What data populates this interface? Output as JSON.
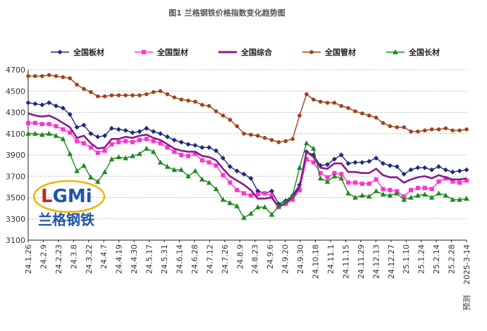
{
  "chart_data": {
    "type": "line",
    "title": "图1 兰格钢铁价格指数变化趋势图",
    "xlabel": "",
    "ylabel": "",
    "ylim": [
      3100,
      4700
    ],
    "yticks": [
      3100,
      3300,
      3500,
      3700,
      3900,
      4100,
      4300,
      4500,
      4700
    ],
    "grid": true,
    "legend_position": "top",
    "x_tick_labels": [
      "24.1.26",
      "24.2.9",
      "24.2.23",
      "24.3.8",
      "24.3.22",
      "24.4.7",
      "24.4.19",
      "24.4.30",
      "24.5.17",
      "24.5.31",
      "24.6.14",
      "24.6.28",
      "24.7.12",
      "24.7.26",
      "24.8.9",
      "24.8.23",
      "24.9.6",
      "24.9.20",
      "24.9.30",
      "24.10.18",
      "24.11.1",
      "24.11.15",
      "24.11.29",
      "24.12.13",
      "24.12.27",
      "25.1.10",
      "25.1.24",
      "25.2.14",
      "25.2.28",
      "2025-3-14"
    ],
    "x_forecast_label": "预测",
    "series": [
      {
        "name": "全国板材",
        "color": "#1f2a7a",
        "marker": "diamond",
        "values": [
          4390,
          4380,
          4370,
          4390,
          4360,
          4340,
          4280,
          4160,
          4180,
          4100,
          4070,
          4080,
          4150,
          4140,
          4130,
          4110,
          4120,
          4150,
          4120,
          4100,
          4070,
          4040,
          4020,
          4000,
          3990,
          3970,
          3970,
          3940,
          3870,
          3790,
          3750,
          3720,
          3680,
          3560,
          3540,
          3560,
          3440,
          3470,
          3520,
          3620,
          3930,
          3900,
          3800,
          3810,
          3860,
          3900,
          3820,
          3830,
          3830,
          3840,
          3870,
          3820,
          3800,
          3790,
          3720,
          3760,
          3780,
          3780,
          3760,
          3790,
          3760,
          3740,
          3750,
          3760
        ]
      },
      {
        "name": "全国型材",
        "color": "#ff33cc",
        "marker": "square",
        "values": [
          4200,
          4200,
          4190,
          4190,
          4170,
          4140,
          4110,
          4030,
          4010,
          3970,
          3920,
          3940,
          4000,
          4020,
          4030,
          4020,
          4040,
          4050,
          4030,
          4010,
          3970,
          3930,
          3900,
          3890,
          3910,
          3850,
          3830,
          3800,
          3710,
          3640,
          3570,
          3540,
          3520,
          3530,
          3540,
          3520,
          3410,
          3440,
          3480,
          3570,
          3860,
          3830,
          3730,
          3690,
          3730,
          3720,
          3640,
          3640,
          3630,
          3630,
          3670,
          3580,
          3570,
          3560,
          3510,
          3570,
          3590,
          3590,
          3580,
          3650,
          3680,
          3650,
          3640,
          3660
        ]
      },
      {
        "name": "全国综合",
        "color": "#8b1a8b",
        "marker": "none",
        "values": [
          4290,
          4270,
          4260,
          4270,
          4240,
          4200,
          4160,
          4060,
          4080,
          4010,
          3960,
          3970,
          4050,
          4050,
          4070,
          4060,
          4080,
          4090,
          4060,
          4040,
          4000,
          3960,
          3940,
          3930,
          3930,
          3890,
          3880,
          3850,
          3770,
          3700,
          3660,
          3620,
          3570,
          3490,
          3490,
          3500,
          3410,
          3450,
          3500,
          3600,
          3930,
          3880,
          3780,
          3770,
          3820,
          3820,
          3740,
          3740,
          3730,
          3730,
          3770,
          3710,
          3690,
          3690,
          3640,
          3670,
          3690,
          3700,
          3680,
          3710,
          3690,
          3670,
          3670,
          3680
        ]
      },
      {
        "name": "全国管材",
        "color": "#a0421a",
        "marker": "circle",
        "values": [
          4640,
          4640,
          4640,
          4650,
          4640,
          4630,
          4620,
          4560,
          4520,
          4490,
          4450,
          4450,
          4460,
          4460,
          4460,
          4460,
          4460,
          4470,
          4490,
          4500,
          4470,
          4440,
          4420,
          4410,
          4400,
          4370,
          4360,
          4310,
          4270,
          4230,
          4170,
          4100,
          4090,
          4080,
          4060,
          4040,
          4020,
          4030,
          4050,
          4270,
          4470,
          4420,
          4400,
          4390,
          4390,
          4360,
          4340,
          4310,
          4290,
          4270,
          4250,
          4200,
          4170,
          4160,
          4160,
          4120,
          4120,
          4130,
          4140,
          4140,
          4150,
          4130,
          4130,
          4140
        ]
      },
      {
        "name": "全国长材",
        "color": "#1a8a1a",
        "marker": "triangle",
        "values": [
          4100,
          4100,
          4090,
          4100,
          4080,
          4050,
          3910,
          3750,
          3800,
          3690,
          3650,
          3740,
          3860,
          3880,
          3870,
          3890,
          3910,
          3960,
          3930,
          3830,
          3790,
          3760,
          3760,
          3700,
          3750,
          3670,
          3640,
          3580,
          3480,
          3450,
          3420,
          3310,
          3350,
          3410,
          3410,
          3340,
          3420,
          3460,
          3520,
          3780,
          4010,
          3960,
          3680,
          3650,
          3700,
          3680,
          3540,
          3500,
          3520,
          3510,
          3560,
          3530,
          3520,
          3540,
          3480,
          3500,
          3520,
          3530,
          3500,
          3540,
          3520,
          3480,
          3480,
          3490
        ]
      }
    ]
  },
  "watermark": {
    "logo_text": "LGMi",
    "logo_subtext": "兰格钢铁",
    "colors": [
      "#c8262a",
      "#1f55a8",
      "#f2b600"
    ]
  }
}
